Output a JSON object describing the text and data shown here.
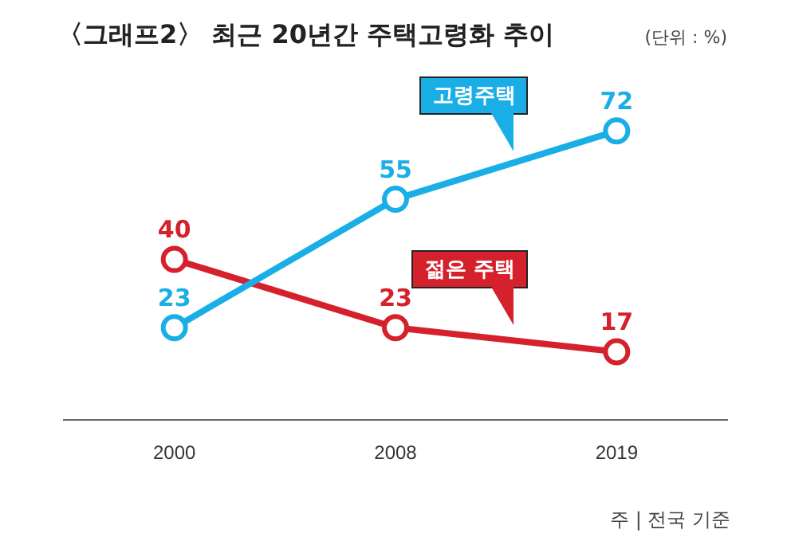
{
  "chart_data": {
    "type": "line",
    "title": "〈그래프2〉 최근 20년간 주택고령화 추이",
    "annotations": [
      "(단위 : %)",
      "주 | 전국 기준"
    ],
    "categories": [
      "2000",
      "2008",
      "2019"
    ],
    "series": [
      {
        "name": "고령주택",
        "color": "#1aaee6",
        "values": [
          23,
          55,
          72
        ]
      },
      {
        "name": "젊은 주택",
        "color": "#d4212c",
        "values": [
          40,
          23,
          17
        ]
      }
    ],
    "data_labels": true,
    "legend": false,
    "grid": false,
    "marker": "circle"
  }
}
